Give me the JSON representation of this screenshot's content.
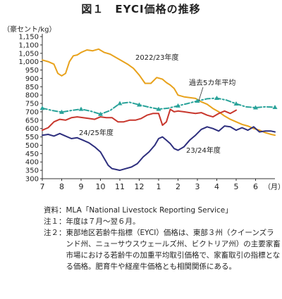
{
  "figure": {
    "title": "図１　EYCI価格の推移"
  },
  "chart_data": {
    "type": "line",
    "title": "図１　EYCI価格の推移",
    "ylabel": "（豪セント/kg）",
    "xlabel": "（月）",
    "categories": [
      "7",
      "8",
      "9",
      "10",
      "11",
      "12",
      "1",
      "2",
      "3",
      "4",
      "5",
      "6"
    ],
    "ylim": [
      300,
      1150
    ],
    "ytick_step": 50,
    "ytick_labels": [
      "300",
      "350",
      "400",
      "450",
      "500",
      "550",
      "600",
      "650",
      "700",
      "750",
      "800",
      "850",
      "900",
      "950",
      "1,000",
      "1,050",
      "1,100",
      "1,150"
    ],
    "grid": false,
    "series": [
      {
        "name": "2022/23年度",
        "label": "2022/23年度",
        "color": "#e8a21c",
        "style": "solid",
        "x": [
          0,
          0.3,
          0.6,
          0.8,
          1.0,
          1.2,
          1.4,
          1.6,
          1.8,
          2.0,
          2.3,
          2.6,
          2.9,
          3.2,
          3.5,
          3.8,
          4.1,
          4.4,
          4.7,
          5.0,
          5.3,
          5.6,
          5.9,
          6.2,
          6.4,
          6.6,
          6.8,
          7.0,
          7.3,
          7.6,
          7.9,
          8.2,
          8.5,
          8.8,
          9.1,
          9.4,
          9.7,
          10.0,
          10.3,
          10.6,
          10.9,
          11.2,
          11.5,
          11.8,
          12.0
        ],
        "y": [
          1010,
          1000,
          985,
          930,
          915,
          930,
          1000,
          1035,
          1040,
          1055,
          1070,
          1065,
          1075,
          1055,
          1045,
          1025,
          1005,
          985,
          960,
          920,
          870,
          870,
          905,
          895,
          875,
          860,
          840,
          800,
          790,
          785,
          780,
          760,
          745,
          720,
          700,
          675,
          655,
          640,
          625,
          615,
          600,
          590,
          575,
          565,
          560
        ]
      },
      {
        "name": "過去5カ年平均",
        "label": "過去5カ年平均",
        "color": "#2aa39a",
        "style": "dashdot",
        "x": [
          0,
          0.5,
          1.0,
          1.5,
          2.0,
          2.5,
          3.0,
          3.5,
          4.0,
          4.5,
          5.0,
          5.5,
          6.0,
          6.5,
          7.0,
          7.5,
          8.0,
          8.5,
          9.0,
          9.5,
          10.0,
          10.5,
          11.0,
          11.5,
          12.0
        ],
        "y": [
          722,
          708,
          698,
          708,
          716,
          704,
          686,
          708,
          750,
          757,
          742,
          728,
          716,
          722,
          736,
          750,
          765,
          778,
          782,
          770,
          748,
          730,
          725,
          730,
          727
        ]
      },
      {
        "name": "23/24年度",
        "label": "23/24年度",
        "color": "#2e2f7e",
        "style": "solid",
        "x": [
          0,
          0.3,
          0.6,
          0.9,
          1.2,
          1.5,
          1.8,
          2.1,
          2.4,
          2.7,
          3.0,
          3.2,
          3.4,
          3.6,
          3.8,
          4.0,
          4.3,
          4.6,
          4.9,
          5.2,
          5.5,
          5.8,
          6.0,
          6.2,
          6.4,
          6.6,
          6.8,
          7.0,
          7.3,
          7.6,
          7.9,
          8.2,
          8.5,
          8.8,
          9.1,
          9.4,
          9.7,
          10.0,
          10.3,
          10.6,
          10.9,
          11.2,
          11.5,
          11.8,
          12.0
        ],
        "y": [
          560,
          565,
          555,
          570,
          555,
          540,
          545,
          530,
          515,
          490,
          460,
          420,
          380,
          360,
          355,
          350,
          360,
          370,
          390,
          430,
          460,
          500,
          540,
          550,
          530,
          510,
          480,
          470,
          490,
          530,
          560,
          595,
          610,
          600,
          585,
          615,
          610,
          590,
          605,
          590,
          610,
          580,
          585,
          585,
          580
        ]
      },
      {
        "name": "24/25年度",
        "label": "24/25年度",
        "color": "#c8372d",
        "style": "solid",
        "x": [
          0,
          0.3,
          0.6,
          0.9,
          1.2,
          1.5,
          1.8,
          2.1,
          2.4,
          2.7,
          3.0,
          3.3,
          3.6,
          3.9,
          4.2,
          4.5,
          4.8,
          5.1,
          5.4,
          5.7,
          6.0,
          6.2,
          6.4,
          6.6,
          6.8,
          7.0,
          7.3,
          7.6,
          7.9,
          8.2,
          8.5,
          8.8,
          9.1,
          9.4,
          9.7,
          10.0
        ],
        "y": [
          590,
          605,
          640,
          655,
          650,
          665,
          670,
          665,
          660,
          655,
          670,
          665,
          665,
          640,
          640,
          650,
          650,
          660,
          680,
          690,
          690,
          620,
          640,
          715,
          700,
          705,
          700,
          695,
          690,
          695,
          680,
          670,
          690,
          705,
          690,
          710
        ]
      }
    ]
  },
  "notes": [
    {
      "label": "資料：",
      "text": "MLA「National Livestock Reporting Service」"
    },
    {
      "label": "注１：",
      "text": "年度は７月～翌６月。"
    },
    {
      "label": "注２：",
      "text": "東部地区若齢牛指標（EYCI）価格は、東部３州（クイーンズランド州、ニューサウスウェールズ州、ビクトリア州）の主要家畜市場における若齢牛の加重平均取引価格で、家畜取引の指標となる価格。肥育牛や経産牛価格とも相関関係にある。"
    }
  ]
}
